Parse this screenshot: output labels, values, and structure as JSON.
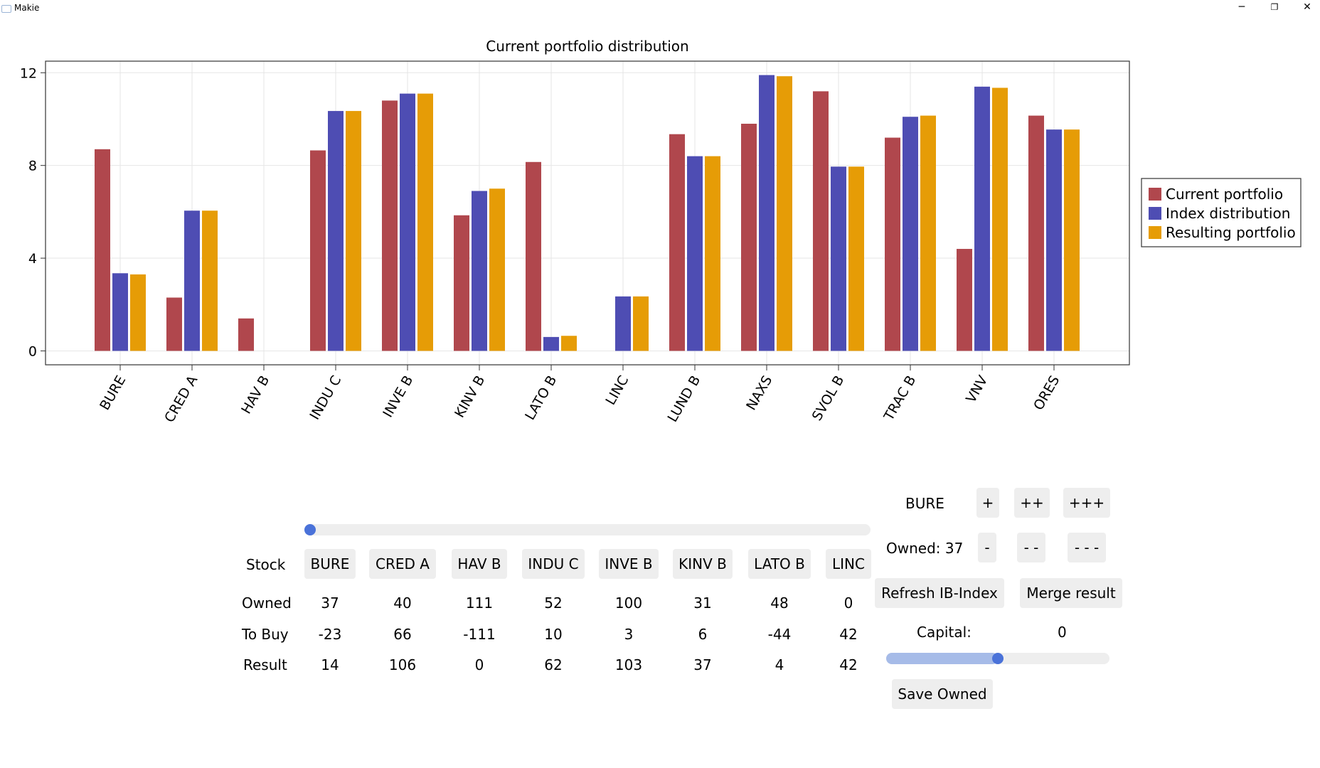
{
  "window": {
    "title": "Makie",
    "minimize_glyph": "─",
    "restore_glyph": "❐",
    "close_glyph": "✕"
  },
  "chart_data": {
    "type": "bar",
    "title": "Current portfolio distribution",
    "xlabel": "",
    "ylabel": "",
    "ylim": [
      -0.6,
      12.5
    ],
    "yticks": [
      0,
      4,
      8,
      12
    ],
    "grid": true,
    "legend_position": "right",
    "categories": [
      "BURE",
      "CRED A",
      "HAV B",
      "INDU C",
      "INVE B",
      "KINV B",
      "LATO B",
      "LINC",
      "LUND B",
      "NAXS",
      "SVOL B",
      "TRAC B",
      "VNV",
      "ORES"
    ],
    "series": [
      {
        "name": "Current portfolio",
        "color": "#b0474d",
        "values": [
          8.7,
          2.3,
          1.4,
          8.65,
          10.8,
          5.85,
          8.15,
          0,
          9.35,
          9.8,
          11.2,
          9.2,
          4.4,
          10.15
        ]
      },
      {
        "name": "Index distribution",
        "color": "#4e4db3",
        "values": [
          3.35,
          6.05,
          0,
          10.35,
          11.1,
          6.9,
          0.6,
          2.35,
          8.4,
          11.9,
          7.95,
          10.1,
          11.4,
          9.55
        ]
      },
      {
        "name": "Resulting portfolio",
        "color": "#e69c06",
        "values": [
          3.3,
          6.05,
          0,
          10.35,
          11.1,
          7.0,
          0.65,
          2.35,
          8.4,
          11.85,
          7.95,
          10.15,
          11.35,
          9.55
        ]
      }
    ]
  },
  "table": {
    "slider_value": 0,
    "header_label": "Stock",
    "row_labels": [
      "Owned",
      "To Buy",
      "Result"
    ],
    "stocks": [
      "BURE",
      "CRED A",
      "HAV B",
      "INDU C",
      "INVE B",
      "KINV B",
      "LATO B",
      "LINC"
    ],
    "owned": [
      "37",
      "40",
      "111",
      "52",
      "100",
      "31",
      "48",
      "0"
    ],
    "to_buy": [
      "-23",
      "66",
      "-111",
      "10",
      "3",
      "6",
      "-44",
      "42"
    ],
    "result": [
      "14",
      "106",
      "0",
      "62",
      "103",
      "37",
      "4",
      "42"
    ]
  },
  "controls": {
    "selected_stock": "BURE",
    "plus1": "+",
    "plus2": "++",
    "plus3": "+++",
    "owned_label": "Owned: 37",
    "minus1": "-",
    "minus2": "- -",
    "minus3": "- - -",
    "refresh_label": "Refresh IB-Index",
    "merge_label": "Merge result",
    "capital_label": "Capital:",
    "capital_value": "0",
    "capital_slider_fraction": 0.5,
    "save_label": "Save Owned"
  }
}
